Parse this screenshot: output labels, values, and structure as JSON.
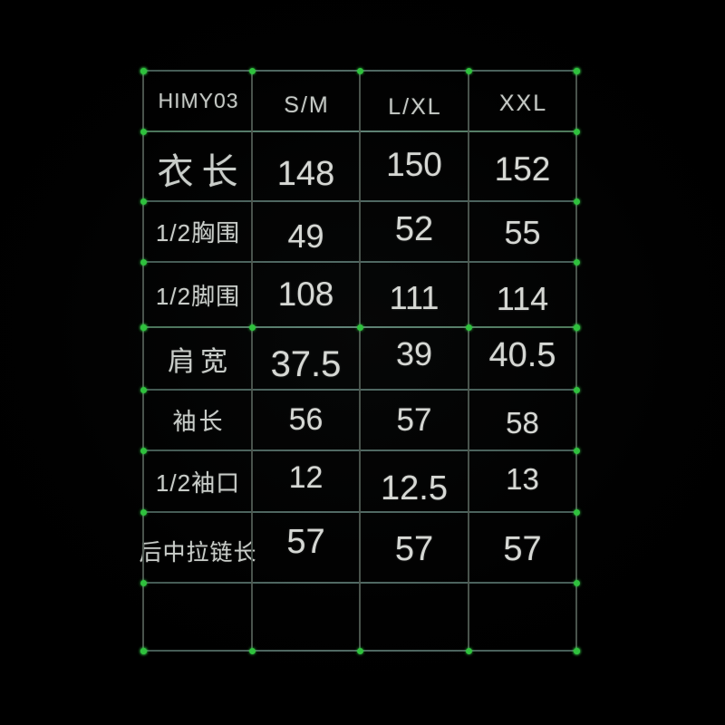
{
  "page": {
    "background": "#000000"
  },
  "colors": {
    "grid_line": "#50655e",
    "grid_line_bright": "#5d8270",
    "node_dot": "#2fc13d",
    "header_text": "#c5c9c5",
    "label_text": "#c9cdc9",
    "value_text": "#d6d8d4"
  },
  "table": {
    "columns": [
      "HIMY03",
      "S/M",
      "L/XL",
      "XXL"
    ],
    "rows": [
      {
        "label": "衣长",
        "values": [
          "148",
          "150",
          "152"
        ]
      },
      {
        "label": "1/2胸围",
        "values": [
          "49",
          "52",
          "55"
        ]
      },
      {
        "label": "1/2脚围",
        "values": [
          "108",
          "111",
          "114"
        ]
      },
      {
        "label": "肩宽",
        "values": [
          "37.5",
          "39",
          "40.5"
        ]
      },
      {
        "label": "袖长",
        "values": [
          "56",
          "57",
          "58"
        ]
      },
      {
        "label": "1/2袖口",
        "values": [
          "12",
          "12.5",
          "13"
        ]
      },
      {
        "label": "后中拉链长",
        "values": [
          "57",
          "57",
          "57"
        ]
      },
      {
        "label": "",
        "values": [
          "",
          "",
          ""
        ]
      }
    ]
  },
  "chart_data": {
    "type": "table",
    "columns": [
      "HIMY03",
      "S/M",
      "L/XL",
      "XXL"
    ],
    "rows": [
      [
        "衣长",
        148,
        150,
        152
      ],
      [
        "1/2胸围",
        49,
        52,
        55
      ],
      [
        "1/2脚围",
        108,
        111,
        114
      ],
      [
        "肩宽",
        37.5,
        39,
        40.5
      ],
      [
        "袖长",
        56,
        57,
        58
      ],
      [
        "1/2袖口",
        12,
        12.5,
        13
      ],
      [
        "后中拉链长",
        57,
        57,
        57
      ],
      [
        "",
        "",
        "",
        ""
      ]
    ]
  }
}
